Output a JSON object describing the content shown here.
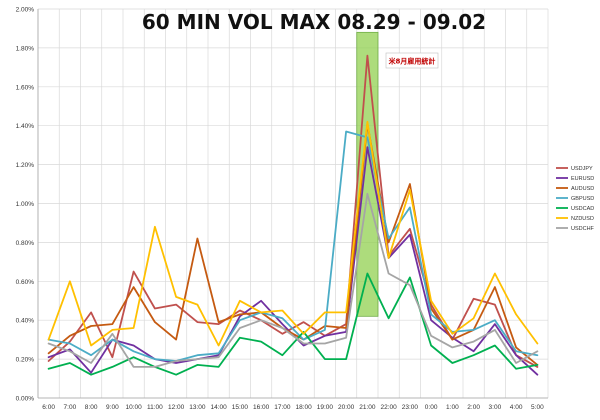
{
  "chart_data": {
    "type": "line",
    "title": "60 MIN VOL MAX  08.29 - 09.02",
    "annotation": "米8月雇用統計",
    "highlight_category": "21:00",
    "categories": [
      "6:00",
      "7:00",
      "8:00",
      "9:00",
      "10:00",
      "11:00",
      "12:00",
      "13:00",
      "14:00",
      "15:00",
      "16:00",
      "17:00",
      "18:00",
      "19:00",
      "20:00",
      "21:00",
      "22:00",
      "23:00",
      "0:00",
      "1:00",
      "2:00",
      "3:00",
      "4:00",
      "5:00"
    ],
    "yticks": [
      "0.00%",
      "0.20%",
      "0.40%",
      "0.60%",
      "0.80%",
      "1.00%",
      "1.20%",
      "1.40%",
      "1.60%",
      "1.80%",
      "2.00%"
    ],
    "ylim": [
      0,
      2.0
    ],
    "grid": true,
    "legend_position": "right",
    "series": [
      {
        "name": "USDJPY",
        "color": "#c0504d",
        "values": [
          0.19,
          0.29,
          0.44,
          0.21,
          0.65,
          0.46,
          0.48,
          0.39,
          0.38,
          0.45,
          0.4,
          0.33,
          0.39,
          0.32,
          0.38,
          1.76,
          0.73,
          0.87,
          0.48,
          0.3,
          0.51,
          0.48,
          0.22,
          0.16
        ]
      },
      {
        "name": "EURUSD",
        "color": "#7030a0",
        "values": [
          0.21,
          0.25,
          0.13,
          0.3,
          0.27,
          0.2,
          0.18,
          0.2,
          0.22,
          0.42,
          0.5,
          0.38,
          0.27,
          0.32,
          0.34,
          1.29,
          0.72,
          0.84,
          0.4,
          0.31,
          0.24,
          0.38,
          0.22,
          0.12
        ]
      },
      {
        "name": "AUDUSD",
        "color": "#c55a11",
        "values": [
          0.23,
          0.32,
          0.37,
          0.38,
          0.57,
          0.39,
          0.3,
          0.82,
          0.39,
          0.43,
          0.44,
          0.36,
          0.3,
          0.37,
          0.36,
          1.41,
          0.8,
          1.1,
          0.46,
          0.3,
          0.35,
          0.57,
          0.26,
          0.17
        ]
      },
      {
        "name": "GBPUSD",
        "color": "#4bacc6",
        "values": [
          0.3,
          0.28,
          0.22,
          0.3,
          0.24,
          0.2,
          0.19,
          0.22,
          0.23,
          0.4,
          0.44,
          0.41,
          0.3,
          0.35,
          1.37,
          1.34,
          0.82,
          0.98,
          0.43,
          0.34,
          0.35,
          0.4,
          0.24,
          0.22
        ]
      },
      {
        "name": "USDCAD",
        "color": "#00b050",
        "values": [
          0.15,
          0.18,
          0.12,
          0.16,
          0.21,
          0.16,
          0.12,
          0.17,
          0.16,
          0.31,
          0.29,
          0.22,
          0.34,
          0.2,
          0.2,
          0.64,
          0.41,
          0.62,
          0.27,
          0.18,
          0.22,
          0.27,
          0.15,
          0.17
        ]
      },
      {
        "name": "NZDUSD",
        "color": "#ffc000",
        "values": [
          0.3,
          0.6,
          0.27,
          0.35,
          0.36,
          0.88,
          0.52,
          0.48,
          0.27,
          0.5,
          0.44,
          0.45,
          0.33,
          0.44,
          0.44,
          1.42,
          0.72,
          1.07,
          0.5,
          0.33,
          0.41,
          0.64,
          0.43,
          0.28
        ]
      },
      {
        "name": "USDCHF",
        "color": "#a5a5a5",
        "values": [
          0.28,
          0.24,
          0.18,
          0.33,
          0.16,
          0.16,
          0.19,
          0.2,
          0.21,
          0.36,
          0.4,
          0.36,
          0.28,
          0.28,
          0.31,
          1.05,
          0.64,
          0.58,
          0.32,
          0.26,
          0.29,
          0.35,
          0.18,
          0.24
        ]
      }
    ]
  }
}
